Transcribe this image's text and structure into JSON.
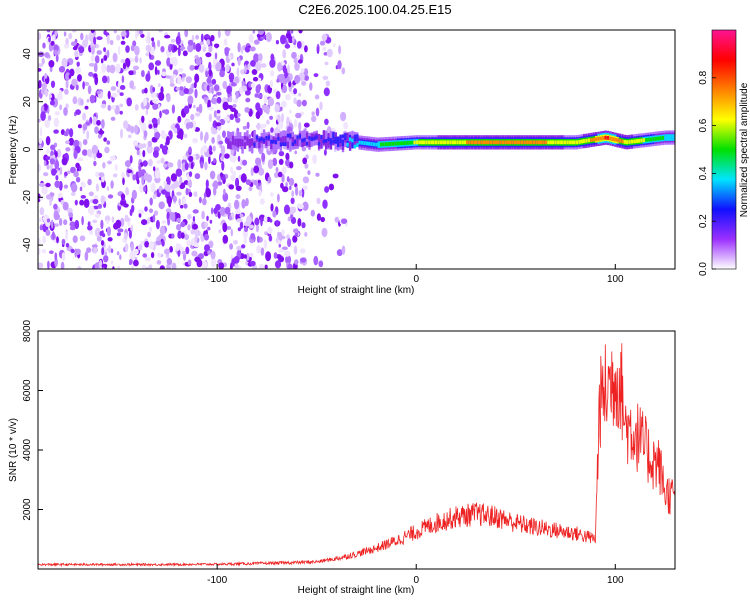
{
  "figure": {
    "title": "C2E6.2025.100.04.25.E15"
  },
  "chart_data": [
    {
      "type": "heatmap",
      "title": "",
      "xlabel": "Height of straight line (km)",
      "ylabel": "Frequency (Hz)",
      "xlim": [
        -190,
        130
      ],
      "ylim": [
        -50,
        50
      ],
      "xticks": [
        -100,
        0,
        100
      ],
      "yticks": [
        -40,
        -20,
        0,
        20,
        40
      ],
      "colorbar": {
        "label": "Normalized spectral amplitude",
        "range": [
          0,
          1
        ],
        "ticks": [
          0.0,
          0.2,
          0.4,
          0.6,
          0.8
        ],
        "tick_labels": [
          "0.0",
          "0.2",
          "0.4",
          "0.6",
          "0.8"
        ],
        "colormap": [
          "#ffffff",
          "#9b30ff",
          "#1010ff",
          "#00e5ff",
          "#00e000",
          "#ffff00",
          "#ff8000",
          "#ff0000",
          "#ff1493"
        ]
      },
      "features": {
        "noise_region_x": [
          -190,
          -55
        ],
        "ridge_points": [
          {
            "x": -90,
            "freq": 3,
            "amp": 0.3
          },
          {
            "x": -60,
            "freq": 4,
            "amp": 0.35
          },
          {
            "x": -40,
            "freq": 4,
            "amp": 0.4
          },
          {
            "x": -20,
            "freq": 2,
            "amp": 0.55
          },
          {
            "x": 0,
            "freq": 3,
            "amp": 0.7
          },
          {
            "x": 20,
            "freq": 3,
            "amp": 0.8
          },
          {
            "x": 40,
            "freq": 3,
            "amp": 0.85
          },
          {
            "x": 60,
            "freq": 3,
            "amp": 0.85
          },
          {
            "x": 80,
            "freq": 3,
            "amp": 0.7
          },
          {
            "x": 95,
            "freq": 5,
            "amp": 0.95
          },
          {
            "x": 105,
            "freq": 3,
            "amp": 0.8
          },
          {
            "x": 125,
            "freq": 5,
            "amp": 0.55
          }
        ]
      }
    },
    {
      "type": "line",
      "title": "",
      "xlabel": "Height of straight line (km)",
      "ylabel": "SNR (10 * v/v)",
      "xlim": [
        -190,
        130
      ],
      "ylim": [
        0,
        8000
      ],
      "xticks": [
        -100,
        0,
        100
      ],
      "yticks": [
        2000,
        4000,
        6000,
        8000
      ],
      "grid": false,
      "color": "#ee2222",
      "series": [
        {
          "x": [
            -190,
            -160,
            -130,
            -100,
            -70,
            -50,
            -40,
            -30,
            -20,
            -10,
            0,
            10,
            20,
            30,
            40,
            50,
            60,
            70,
            80,
            90,
            92,
            95,
            100,
            103,
            105,
            108,
            112,
            118,
            122,
            125,
            130
          ],
          "values": [
            150,
            150,
            150,
            160,
            200,
            240,
            350,
            500,
            700,
            950,
            1250,
            1550,
            1750,
            1850,
            1750,
            1550,
            1400,
            1300,
            1200,
            1000,
            5500,
            6000,
            6500,
            6200,
            4800,
            4700,
            4400,
            3700,
            3500,
            2600,
            2400
          ]
        }
      ]
    }
  ]
}
